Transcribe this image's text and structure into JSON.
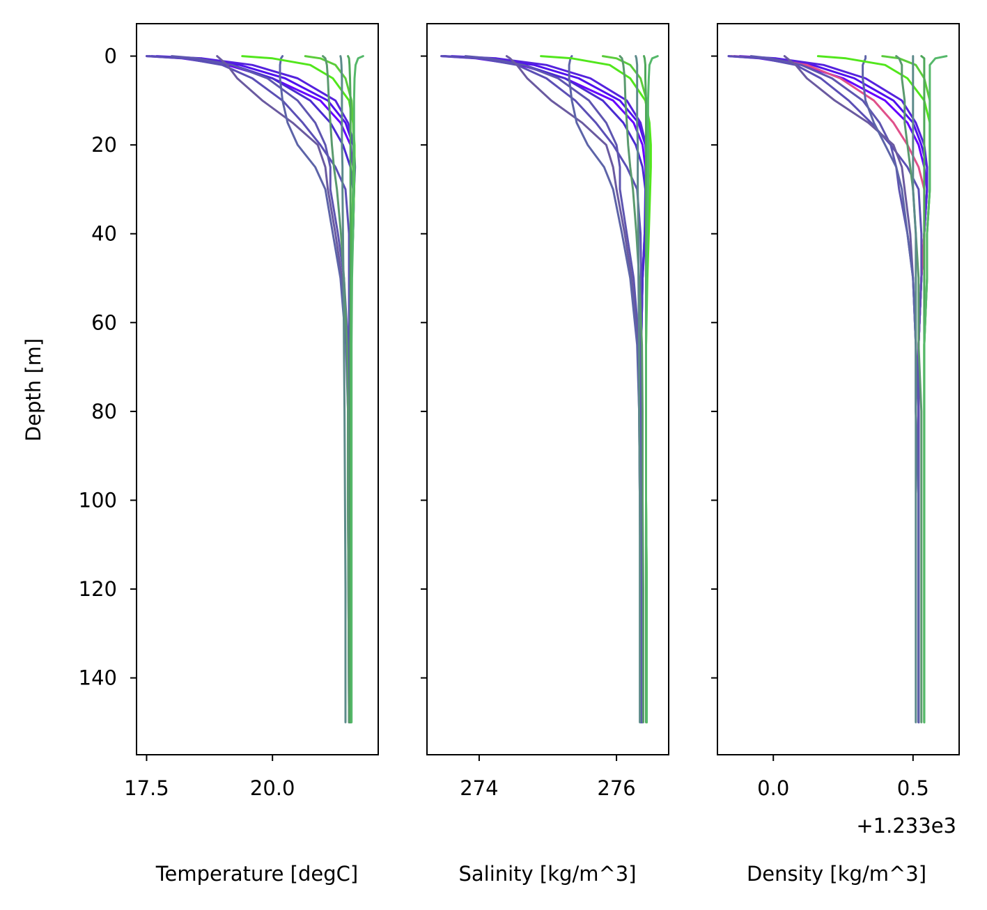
{
  "chart_data": [
    {
      "type": "line",
      "panel": "temperature",
      "xlabel": "Temperature [degC]",
      "ylabel": "Depth [m]",
      "xlim": [
        17.3,
        22.1
      ],
      "ylim": [
        157.3,
        -7.3
      ],
      "xticks": [
        17.5,
        20.0
      ],
      "xtick_labels": [
        "17.5",
        "20.0"
      ],
      "yticks": [
        0,
        20,
        40,
        60,
        80,
        100,
        120,
        140
      ],
      "ytick_labels": [
        "0",
        "20",
        "40",
        "60",
        "80",
        "100",
        "120",
        "140"
      ],
      "offset_text": "",
      "profile_depths": [
        0,
        0.5,
        2,
        5,
        10,
        15,
        20,
        25,
        30,
        40,
        50,
        65,
        80,
        100,
        120,
        150
      ],
      "series": [
        {
          "color": "#6600ff",
          "values": [
            17.5,
            18.2,
            19.1,
            20.0,
            20.95,
            21.35,
            21.55,
            21.6,
            21.62,
            21.6,
            21.55,
            21.52,
            21.52,
            21.53,
            21.53,
            21.54
          ]
        },
        {
          "color": "#5010ee",
          "values": [
            17.6,
            18.4,
            19.35,
            20.25,
            21.1,
            21.45,
            21.6,
            21.63,
            21.62,
            21.6,
            21.56,
            21.53,
            21.53,
            21.53,
            21.54,
            21.54
          ]
        },
        {
          "color": "#5522dd",
          "values": [
            17.7,
            18.6,
            19.6,
            20.5,
            21.25,
            21.5,
            21.62,
            21.64,
            21.62,
            21.58,
            21.55,
            21.52,
            21.52,
            21.53,
            21.53,
            21.54
          ]
        },
        {
          "color": "#4a2bd0",
          "values": [
            17.55,
            18.3,
            19.2,
            20.0,
            20.75,
            21.15,
            21.4,
            21.55,
            21.6,
            21.58,
            21.55,
            21.52,
            21.52,
            21.53,
            21.53,
            21.54
          ]
        },
        {
          "color": "#5b4fb5",
          "values": [
            17.5,
            18.25,
            19.0,
            19.6,
            20.2,
            20.6,
            20.95,
            21.25,
            21.45,
            21.52,
            21.52,
            21.52,
            21.52,
            21.53,
            21.53,
            21.54
          ]
        },
        {
          "color": "#5e55b0",
          "values": [
            18.0,
            18.5,
            19.2,
            19.9,
            20.5,
            20.85,
            21.05,
            21.15,
            21.15,
            21.3,
            21.42,
            21.5,
            21.52,
            21.53,
            21.53,
            21.54
          ]
        },
        {
          "color": "#6a5aa0",
          "values": [
            18.9,
            18.95,
            19.1,
            19.3,
            19.8,
            20.4,
            20.9,
            21.05,
            21.1,
            21.25,
            21.38,
            21.48,
            21.5,
            21.5,
            21.51,
            21.52
          ]
        },
        {
          "color": "#5d64a8",
          "values": [
            20.2,
            20.17,
            20.15,
            20.15,
            20.2,
            20.3,
            20.5,
            20.85,
            21.05,
            21.2,
            21.35,
            21.46,
            21.5,
            21.5,
            21.51,
            21.52
          ]
        },
        {
          "color": "#52e61c",
          "values": [
            19.4,
            20.0,
            20.75,
            21.2,
            21.52,
            21.6,
            21.63,
            21.63,
            21.62,
            21.6,
            21.57,
            21.55,
            21.55,
            21.55,
            21.56,
            21.56
          ]
        },
        {
          "color": "#5bcc3a",
          "values": [
            20.65,
            20.95,
            21.25,
            21.45,
            21.57,
            21.6,
            21.61,
            21.6,
            21.6,
            21.58,
            21.57,
            21.56,
            21.56,
            21.56,
            21.56,
            21.56
          ]
        },
        {
          "color": "#5a9a6e",
          "values": [
            21.0,
            21.05,
            21.08,
            21.1,
            21.12,
            21.15,
            21.18,
            21.22,
            21.28,
            21.36,
            21.42,
            21.48,
            21.5,
            21.5,
            21.51,
            21.52
          ]
        },
        {
          "color": "#4fa85a",
          "values": [
            21.5,
            21.52,
            21.53,
            21.54,
            21.55,
            21.55,
            21.55,
            21.55,
            21.55,
            21.55,
            21.55,
            21.55,
            21.55,
            21.55,
            21.55,
            21.55
          ]
        },
        {
          "color": "#5c8a8a",
          "values": [
            21.35,
            21.36,
            21.37,
            21.38,
            21.38,
            21.38,
            21.38,
            21.39,
            21.39,
            21.4,
            21.41,
            21.42,
            21.43,
            21.44,
            21.45,
            21.45
          ]
        },
        {
          "color": "#55b86a",
          "values": [
            21.8,
            21.7,
            21.65,
            21.63,
            21.62,
            21.62,
            21.62,
            21.62,
            21.61,
            21.6,
            21.58,
            21.57,
            21.57,
            21.57,
            21.57,
            21.57
          ]
        }
      ]
    },
    {
      "type": "line",
      "panel": "salinity",
      "xlabel": "Salinity [kg/m^3]",
      "ylabel": "",
      "xlim": [
        273.24,
        276.76
      ],
      "ylim": [
        157.3,
        -7.3
      ],
      "xticks": [
        274,
        276
      ],
      "xtick_labels": [
        "274",
        "276"
      ],
      "yticks": [
        0,
        20,
        40,
        60,
        80,
        100,
        120,
        140
      ],
      "ytick_labels": [],
      "offset_text": "",
      "profile_depths": [
        0,
        0.5,
        2,
        5,
        10,
        15,
        20,
        25,
        30,
        40,
        50,
        65,
        80,
        100,
        120,
        150
      ],
      "series": [
        {
          "color": "#6600ff",
          "values": [
            273.45,
            273.95,
            274.6,
            275.25,
            275.95,
            276.25,
            276.38,
            276.42,
            276.43,
            276.42,
            276.37,
            276.35,
            276.35,
            276.36,
            276.36,
            276.37
          ]
        },
        {
          "color": "#5010ee",
          "values": [
            273.5,
            274.1,
            274.8,
            275.45,
            276.05,
            276.32,
            276.42,
            276.44,
            276.43,
            276.42,
            276.38,
            276.36,
            276.36,
            276.36,
            276.37,
            276.37
          ]
        },
        {
          "color": "#5522dd",
          "values": [
            273.6,
            274.25,
            274.98,
            275.62,
            276.15,
            276.35,
            276.43,
            276.45,
            276.44,
            276.41,
            276.38,
            276.36,
            276.36,
            276.36,
            276.36,
            276.37
          ]
        },
        {
          "color": "#4a2bd0",
          "values": [
            273.48,
            274.0,
            274.65,
            275.25,
            275.8,
            276.1,
            276.28,
            276.38,
            276.42,
            276.41,
            276.38,
            276.36,
            276.36,
            276.36,
            276.36,
            276.37
          ]
        },
        {
          "color": "#5b4fb5",
          "values": [
            273.45,
            274.0,
            274.55,
            274.98,
            275.4,
            275.7,
            275.95,
            276.15,
            276.3,
            276.35,
            276.36,
            276.36,
            276.36,
            276.36,
            276.36,
            276.37
          ]
        },
        {
          "color": "#5e55b0",
          "values": [
            273.8,
            274.15,
            274.65,
            275.15,
            275.6,
            275.85,
            276.0,
            276.05,
            276.05,
            276.15,
            276.25,
            276.33,
            276.35,
            276.36,
            276.36,
            276.37
          ]
        },
        {
          "color": "#6a5aa0",
          "values": [
            274.4,
            274.45,
            274.55,
            274.7,
            275.05,
            275.5,
            275.85,
            275.95,
            276.0,
            276.12,
            276.22,
            276.31,
            276.33,
            276.34,
            276.35,
            276.35
          ]
        },
        {
          "color": "#5d64a8",
          "values": [
            275.35,
            275.33,
            275.31,
            275.31,
            275.35,
            275.42,
            275.58,
            275.82,
            275.95,
            276.08,
            276.2,
            276.3,
            276.33,
            276.34,
            276.35,
            276.35
          ]
        },
        {
          "color": "#52e61c",
          "values": [
            274.9,
            275.35,
            275.9,
            276.2,
            276.42,
            276.48,
            276.5,
            276.5,
            276.49,
            276.47,
            276.45,
            276.43,
            276.43,
            276.43,
            276.44,
            276.44
          ]
        },
        {
          "color": "#5bcc3a",
          "values": [
            275.8,
            276.0,
            276.2,
            276.35,
            276.44,
            276.46,
            276.47,
            276.47,
            276.46,
            276.45,
            276.44,
            276.43,
            276.43,
            276.43,
            276.44,
            276.44
          ]
        },
        {
          "color": "#5a9a6e",
          "values": [
            276.05,
            276.08,
            276.1,
            276.12,
            276.13,
            276.15,
            276.17,
            276.2,
            276.24,
            276.29,
            276.33,
            276.37,
            276.38,
            276.38,
            276.39,
            276.39
          ]
        },
        {
          "color": "#4fa85a",
          "values": [
            276.4,
            276.41,
            276.42,
            276.42,
            276.43,
            276.43,
            276.43,
            276.43,
            276.43,
            276.43,
            276.43,
            276.43,
            276.43,
            276.43,
            276.43,
            276.43
          ]
        },
        {
          "color": "#5c8a8a",
          "values": [
            276.28,
            276.29,
            276.3,
            276.3,
            276.3,
            276.3,
            276.31,
            276.31,
            276.31,
            276.32,
            276.32,
            276.33,
            276.33,
            276.34,
            276.34,
            276.34
          ]
        },
        {
          "color": "#55b86a",
          "values": [
            276.6,
            276.52,
            276.48,
            276.47,
            276.46,
            276.46,
            276.46,
            276.46,
            276.46,
            276.45,
            276.44,
            276.43,
            276.43,
            276.43,
            276.44,
            276.44
          ]
        }
      ]
    },
    {
      "type": "line",
      "panel": "density",
      "xlabel": "Density [kg/m^3]",
      "ylabel": "",
      "xlim": [
        -0.2,
        0.665
      ],
      "ylim": [
        157.3,
        -7.3
      ],
      "xticks": [
        0.0,
        0.5
      ],
      "xtick_labels": [
        "0.0",
        "0.5"
      ],
      "yticks": [
        0,
        20,
        40,
        60,
        80,
        100,
        120,
        140
      ],
      "ytick_labels": [],
      "offset_text": "+1.233e3",
      "profile_depths": [
        0,
        0.5,
        2,
        5,
        10,
        15,
        20,
        25,
        30,
        40,
        50,
        65,
        80,
        100,
        120,
        150
      ],
      "series": [
        {
          "color": "#6600ff",
          "values": [
            -0.16,
            -0.05,
            0.1,
            0.25,
            0.4,
            0.48,
            0.52,
            0.54,
            0.55,
            0.54,
            0.53,
            0.52,
            0.52,
            0.52,
            0.52,
            0.52
          ]
        },
        {
          "color": "#5010ee",
          "values": [
            -0.14,
            -0.02,
            0.14,
            0.29,
            0.43,
            0.5,
            0.53,
            0.55,
            0.55,
            0.54,
            0.53,
            0.52,
            0.52,
            0.52,
            0.52,
            0.52
          ]
        },
        {
          "color": "#5522dd",
          "values": [
            -0.12,
            0.01,
            0.18,
            0.33,
            0.46,
            0.51,
            0.54,
            0.55,
            0.55,
            0.54,
            0.53,
            0.52,
            0.52,
            0.52,
            0.52,
            0.52
          ]
        },
        {
          "color": "#e0508a",
          "values": [
            -0.15,
            -0.03,
            0.12,
            0.24,
            0.36,
            0.43,
            0.48,
            0.52,
            0.54,
            0.54,
            0.53,
            0.52,
            0.52,
            0.52,
            0.52,
            0.52
          ]
        },
        {
          "color": "#5b4fb5",
          "values": [
            -0.16,
            -0.04,
            0.08,
            0.17,
            0.27,
            0.35,
            0.42,
            0.48,
            0.52,
            0.53,
            0.53,
            0.52,
            0.52,
            0.52,
            0.52,
            0.52
          ]
        },
        {
          "color": "#5e55b0",
          "values": [
            -0.08,
            -0.01,
            0.1,
            0.21,
            0.32,
            0.38,
            0.42,
            0.44,
            0.45,
            0.48,
            0.5,
            0.51,
            0.52,
            0.52,
            0.52,
            0.52
          ]
        },
        {
          "color": "#6a5aa0",
          "values": [
            0.04,
            0.05,
            0.08,
            0.12,
            0.22,
            0.34,
            0.43,
            0.46,
            0.47,
            0.49,
            0.5,
            0.51,
            0.51,
            0.52,
            0.52,
            0.52
          ]
        },
        {
          "color": "#5d64a8",
          "values": [
            0.33,
            0.33,
            0.32,
            0.32,
            0.33,
            0.36,
            0.4,
            0.44,
            0.46,
            0.48,
            0.5,
            0.51,
            0.51,
            0.52,
            0.52,
            0.52
          ]
        },
        {
          "color": "#52e61c",
          "values": [
            0.16,
            0.26,
            0.4,
            0.48,
            0.54,
            0.56,
            0.56,
            0.56,
            0.56,
            0.55,
            0.55,
            0.54,
            0.54,
            0.54,
            0.54,
            0.54
          ]
        },
        {
          "color": "#5bcc3a",
          "values": [
            0.39,
            0.45,
            0.51,
            0.54,
            0.56,
            0.56,
            0.56,
            0.56,
            0.56,
            0.55,
            0.55,
            0.54,
            0.54,
            0.54,
            0.54,
            0.54
          ]
        },
        {
          "color": "#5a9a6e",
          "values": [
            0.44,
            0.45,
            0.46,
            0.46,
            0.47,
            0.47,
            0.48,
            0.49,
            0.5,
            0.51,
            0.52,
            0.52,
            0.53,
            0.53,
            0.53,
            0.53
          ]
        },
        {
          "color": "#4fa85a",
          "values": [
            0.53,
            0.54,
            0.54,
            0.54,
            0.54,
            0.54,
            0.54,
            0.54,
            0.54,
            0.54,
            0.54,
            0.54,
            0.54,
            0.54,
            0.54,
            0.54
          ]
        },
        {
          "color": "#5c8a8a",
          "values": [
            0.5,
            0.5,
            0.5,
            0.5,
            0.5,
            0.5,
            0.5,
            0.5,
            0.5,
            0.51,
            0.51,
            0.51,
            0.51,
            0.51,
            0.51,
            0.51
          ]
        },
        {
          "color": "#55b86a",
          "values": [
            0.62,
            0.58,
            0.56,
            0.56,
            0.56,
            0.56,
            0.56,
            0.56,
            0.56,
            0.55,
            0.55,
            0.54,
            0.54,
            0.54,
            0.54,
            0.54
          ]
        }
      ]
    }
  ]
}
